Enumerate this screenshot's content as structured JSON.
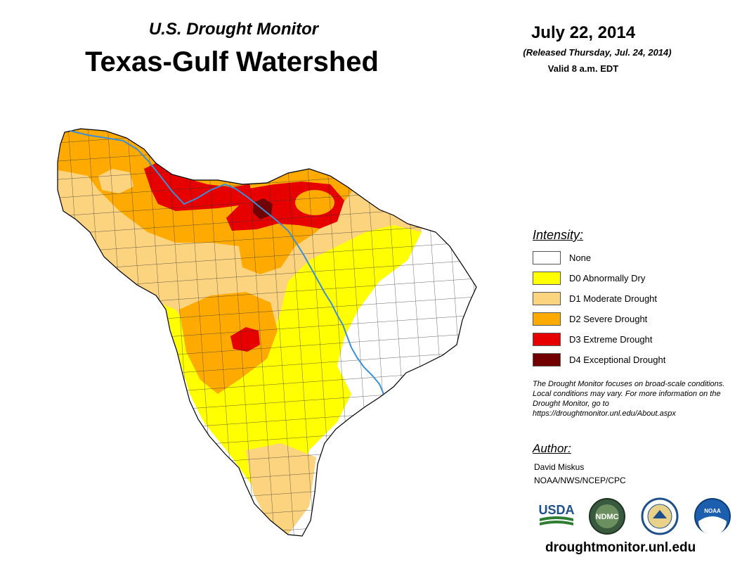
{
  "header": {
    "subtitle": "U.S. Drought Monitor",
    "title": "Texas-Gulf Watershed",
    "date": "July 22, 2014",
    "released": "(Released Thursday, Jul. 24, 2014)",
    "valid": "Valid 8 a.m. EDT"
  },
  "legend": {
    "heading": "Intensity:",
    "items": [
      {
        "label": "None",
        "color": "#ffffff"
      },
      {
        "label": "D0 Abnormally Dry",
        "color": "#ffff00"
      },
      {
        "label": "D1 Moderate Drought",
        "color": "#fcd37f"
      },
      {
        "label": "D2 Severe Drought",
        "color": "#ffaa00"
      },
      {
        "label": "D3 Extreme Drought",
        "color": "#e60000"
      },
      {
        "label": "D4 Exceptional Drought",
        "color": "#730000"
      }
    ]
  },
  "note": "The Drought Monitor focuses on broad-scale conditions. Local conditions may vary. For more information on the Drought Monitor, go to https://droughtmonitor.unl.edu/About.aspx",
  "author": {
    "heading": "Author:",
    "name": "David Miskus",
    "org": "NOAA/NWS/NCEP/CPC"
  },
  "logos": {
    "usda": "USDA",
    "ndmc": "NDMC",
    "noaa": "NOAA"
  },
  "website": "droughtmonitor.unl.edu",
  "colors": {
    "river": "#3a8fd8",
    "county_line": "#333333",
    "outline": "#000000"
  }
}
